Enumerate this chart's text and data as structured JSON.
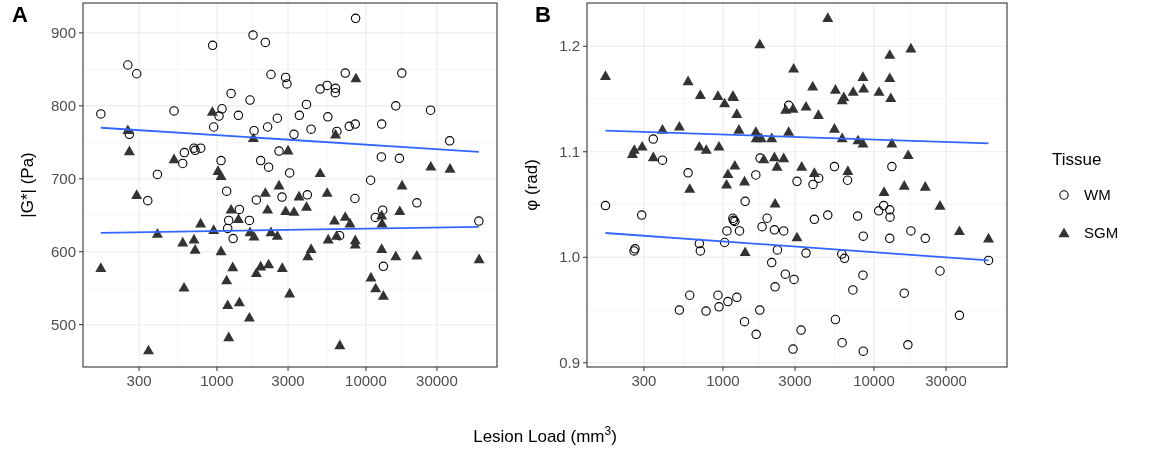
{
  "chart_data": [
    {
      "type": "scatter",
      "title": "A",
      "xlabel": "Lesion Load (mm$^{3}$)",
      "ylabel": "|G*| (Pa)",
      "log": "x",
      "grid": true,
      "xlim": [
        126,
        75900
      ],
      "xticks": [
        300,
        1000,
        3000,
        10000,
        30000
      ],
      "ylim": [
        442,
        941
      ],
      "yticks": [
        500,
        600,
        700,
        800,
        900
      ],
      "series": [
        {
          "color": "#000000",
          "marker": "circle",
          "x": [
            166,
            252,
            289,
            258,
            343,
            398,
            515,
            589,
            604,
            701,
            713,
            778,
            935,
            950,
            1032,
            1081,
            1065,
            1161,
            1199,
            1180,
            1244,
            1283,
            1393,
            1414,
            1651,
            1667,
            1746,
            1774,
            1838,
            1965,
            2112,
            2188,
            2222,
            2305,
            2543,
            2610,
            2733,
            2891,
            2951,
            3076,
            3289,
            3573,
            3990,
            4285,
            4044,
            4928,
            5492,
            5550,
            6250,
            6223,
            6385,
            6657,
            7267,
            7730,
            8484,
            8440,
            8531,
            10760,
            11570,
            12760,
            12700,
            12960,
            13100,
            15870,
            16790,
            17420,
            21990,
            27180,
            36520,
            57340
          ],
          "values": [
            789,
            856,
            844,
            761,
            670,
            706,
            793,
            721,
            736,
            742,
            739,
            742,
            883,
            771,
            786,
            796,
            725,
            683,
            643,
            632,
            817,
            618,
            787,
            658,
            643,
            808,
            897,
            766,
            671,
            725,
            887,
            771,
            716,
            843,
            783,
            738,
            675,
            839,
            830,
            708,
            761,
            787,
            802,
            768,
            678,
            823,
            828,
            785,
            824,
            818,
            765,
            622,
            845,
            772,
            775,
            673,
            920,
            698,
            647,
            775,
            730,
            657,
            580,
            800,
            728,
            845,
            667,
            794,
            752,
            642
          ]
        },
        {
          "color": "#333333",
          "marker": "triangle",
          "x": [
            166,
            252,
            258,
            289,
            347,
            398,
            515,
            589,
            601,
            701,
            713,
            776,
            931,
            950,
            1016,
            1065,
            1065,
            1161,
            1180,
            1199,
            1244,
            1276,
            1393,
            1414,
            1651,
            1667,
            1755,
            1774,
            1838,
            1965,
            2112,
            2188,
            2222,
            2305,
            2543,
            2610,
            2744,
            3000,
            2891,
            3076,
            3289,
            3556,
            3990,
            4074,
            4285,
            4928,
            5492,
            5584,
            6152,
            6250,
            6353,
            6683,
            7267,
            7816,
            8484,
            8484,
            8570,
            10810,
            11630,
            12760,
            12830,
            12760,
            13100,
            15870,
            16890,
            17490,
            21990,
            27290,
            36720,
            57540
          ],
          "values": [
            578,
            767,
            738,
            678,
            465,
            625,
            727,
            613,
            551,
            617,
            603,
            639,
            792,
            630,
            711,
            704,
            601,
            561,
            527,
            483,
            658,
            579,
            645,
            531,
            510,
            627,
            756,
            621,
            571,
            580,
            681,
            658,
            583,
            627,
            622,
            691,
            578,
            739,
            656,
            543,
            655,
            676,
            662,
            594,
            604,
            708,
            681,
            617,
            643,
            761,
            622,
            472,
            648,
            639,
            616,
            610,
            838,
            565,
            550,
            650,
            639,
            604,
            540,
            594,
            656,
            691,
            595,
            717,
            714,
            590
          ]
        },
        {
          "type": "line",
          "color": "#3366ff",
          "x": [
            166,
            57300
          ],
          "values": [
            770,
            737
          ]
        },
        {
          "type": "line",
          "color": "#3366ff",
          "x": [
            166,
            57300
          ],
          "values": [
            626,
            634
          ]
        }
      ]
    },
    {
      "type": "scatter",
      "title": "B",
      "ylabel": "φ (rad)",
      "log": "x",
      "grid": true,
      "legend": "right",
      "legend_title": "Tissue",
      "xlim": [
        126,
        75900
      ],
      "xticks": [
        300,
        1000,
        3000,
        10000,
        30000
      ],
      "ylim": [
        0.896,
        1.241
      ],
      "yticks": [
        {
          "value": 0.9,
          "label": "0.9"
        },
        {
          "value": 1,
          "label": "1.0"
        },
        {
          "value": 1.1,
          "label": "1.1"
        },
        {
          "value": 1.2,
          "label": "1.2"
        }
      ],
      "series": [
        {
          "name": "WM",
          "color": "#000000",
          "marker": "circle",
          "x": [
            167,
            258,
            262,
            290,
            346,
            398,
            515,
            588,
            603,
            698,
            709,
            773,
            927,
            942,
            1026,
            1063,
            1079,
            1164,
            1175,
            1199,
            1236,
            1288,
            1390,
            1403,
            1651,
            1660,
            1754,
            1762,
            1816,
            1960,
            2103,
            2192,
            2214,
            2295,
            2525,
            2589,
            2723,
            2911,
            2956,
            3092,
            3290,
            3548,
            4030,
            3947,
            4304,
            4943,
            5473,
            5555,
            6154,
            6124,
            6382,
            6682,
            7247,
            7786,
            8449,
            8493,
            8493,
            10740,
            11590,
            12710,
            12770,
            12710,
            13130,
            15850,
            16760,
            17550,
            21840,
            27350,
            36750,
            57290
          ],
          "values": [
            1.049,
            1.006,
            1.008,
            1.04,
            1.112,
            1.092,
            0.95,
            1.08,
            0.964,
            1.013,
            1.006,
            0.949,
            0.964,
            0.953,
            1.014,
            1.025,
            0.958,
            1.037,
            1.035,
            1.034,
            0.962,
            1.025,
            0.939,
            1.053,
            1.078,
            0.927,
            0.95,
            1.094,
            1.029,
            1.037,
            0.995,
            1.026,
            0.972,
            1.007,
            1.025,
            0.984,
            1.144,
            0.913,
            0.979,
            1.072,
            0.931,
            1.004,
            1.036,
            1.069,
            1.075,
            1.04,
            1.086,
            0.941,
            0.919,
            1.003,
            0.999,
            1.073,
            0.969,
            1.039,
            0.983,
            1.02,
            0.911,
            1.044,
            1.049,
            1.045,
            1.038,
            1.018,
            1.086,
            0.966,
            0.917,
            1.025,
            1.018,
            0.987,
            0.945,
            0.997
          ]
        },
        {
          "name": "SGM",
          "color": "#333333",
          "marker": "triangle",
          "x": [
            167,
            252,
            259,
            292,
            346,
            398,
            515,
            588,
            603,
            698,
            709,
            776,
            927,
            942,
            1026,
            1057,
            1079,
            1164,
            1175,
            1199,
            1236,
            1276,
            1390,
            1403,
            1651,
            1660,
            1754,
            1791,
            1864,
            2103,
            2192,
            2214,
            2281,
            2525,
            2600,
            2723,
            2911,
            2938,
            3092,
            3321,
            3548,
            3927,
            4030,
            4285,
            4943,
            5473,
            5555,
            6154,
            6154,
            6310,
            6712,
            7282,
            7831,
            8449,
            8535,
            8449,
            10800,
            11660,
            12710,
            12710,
            12910,
            13130,
            15850,
            16830,
            17550,
            21840,
            27350,
            36750,
            57290
          ],
          "values": [
            1.172,
            1.098,
            1.102,
            1.105,
            1.095,
            1.121,
            1.124,
            1.167,
            1.065,
            1.105,
            1.154,
            1.102,
            1.153,
            1.105,
            1.146,
            1.069,
            1.079,
            1.153,
            1.152,
            1.087,
            1.136,
            1.121,
            1.072,
            1.005,
            1.119,
            1.113,
            1.202,
            1.113,
            1.093,
            1.113,
            1.095,
            1.051,
            1.086,
            1.094,
            1.14,
            1.119,
            1.141,
            1.179,
            1.019,
            1.086,
            1.143,
            1.162,
            1.08,
            1.135,
            1.227,
            1.122,
            1.159,
            1.113,
            1.149,
            1.152,
            1.082,
            1.157,
            1.111,
            1.171,
            1.16,
            1.108,
            1.157,
            1.062,
            1.192,
            1.17,
            1.151,
            1.108,
            1.068,
            1.097,
            1.198,
            1.067,
            1.049,
            1.025,
            1.018
          ]
        },
        {
          "type": "line",
          "color": "#3366ff",
          "x": [
            167,
            57300
          ],
          "values": [
            1.12,
            1.108
          ]
        },
        {
          "type": "line",
          "color": "#3366ff",
          "x": [
            167,
            57300
          ],
          "values": [
            1.023,
            0.997
          ]
        }
      ]
    }
  ]
}
